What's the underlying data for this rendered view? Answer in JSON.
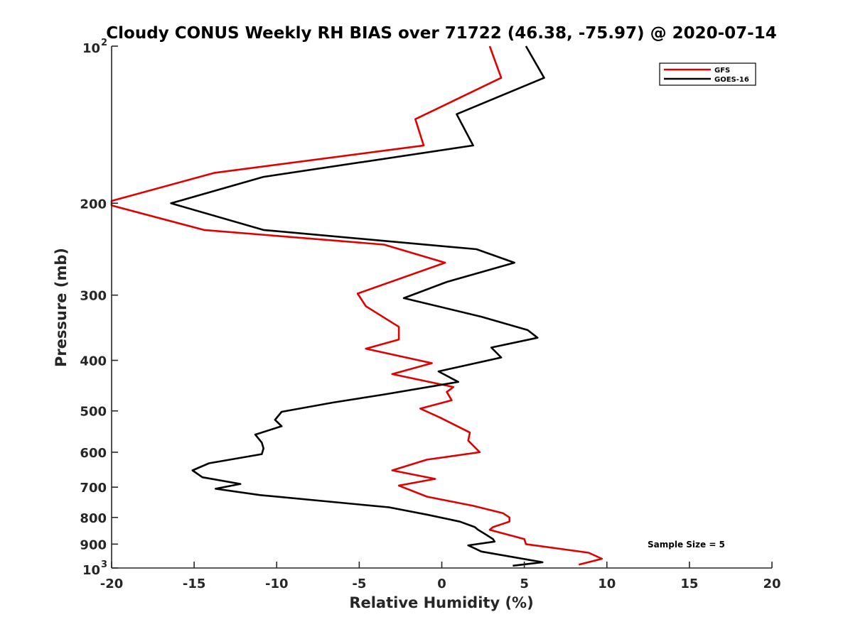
{
  "chart_data": {
    "type": "line",
    "title": "Cloudy CONUS Weekly RH BIAS over 71722 (46.38, -75.97) @ 2020-07-14",
    "xlabel": "Relative Humidity (%)",
    "ylabel": "Pressure (mb)",
    "xlim": [
      -20,
      20
    ],
    "ylim": [
      100,
      1000
    ],
    "y_scale": "log",
    "y_reversed": true,
    "x_ticks": [
      {
        "value": -20,
        "label": "-20"
      },
      {
        "value": -15,
        "label": "-15"
      },
      {
        "value": -10,
        "label": "-10"
      },
      {
        "value": -5,
        "label": "-5"
      },
      {
        "value": 0,
        "label": "0"
      },
      {
        "value": 5,
        "label": "5"
      },
      {
        "value": 10,
        "label": "10"
      },
      {
        "value": 15,
        "label": "15"
      },
      {
        "value": 20,
        "label": "20"
      }
    ],
    "y_ticks": [
      {
        "value": 100,
        "base": "10",
        "exp": "2"
      },
      {
        "value": 200,
        "label": "200"
      },
      {
        "value": 300,
        "label": "300"
      },
      {
        "value": 400,
        "label": "400"
      },
      {
        "value": 500,
        "label": "500"
      },
      {
        "value": 600,
        "label": "600"
      },
      {
        "value": 700,
        "label": "700"
      },
      {
        "value": 800,
        "label": "800"
      },
      {
        "value": 900,
        "label": "900"
      },
      {
        "value": 1000,
        "base": "10",
        "exp": "3"
      }
    ],
    "legend_position": "top-right",
    "annotation": "Sample Size = 5",
    "series": [
      {
        "name": "GFS",
        "color": "#e00000",
        "points": [
          [
            2.9,
            100
          ],
          [
            3.6,
            115
          ],
          [
            -1.6,
            138
          ],
          [
            -1.1,
            155
          ],
          [
            -13.8,
            175
          ],
          [
            -20.0,
            198
          ],
          [
            -20.0,
            202
          ],
          [
            -14.4,
            225
          ],
          [
            -3.5,
            240
          ],
          [
            0.2,
            260
          ],
          [
            -5.1,
            298
          ],
          [
            -4.6,
            315
          ],
          [
            -2.6,
            345
          ],
          [
            -2.6,
            365
          ],
          [
            -4.6,
            380
          ],
          [
            -0.6,
            405
          ],
          [
            -3.0,
            425
          ],
          [
            0.7,
            450
          ],
          [
            0.3,
            460
          ],
          [
            0.6,
            477
          ],
          [
            -1.3,
            495
          ],
          [
            -0.1,
            515
          ],
          [
            1.7,
            550
          ],
          [
            1.6,
            570
          ],
          [
            2.3,
            600
          ],
          [
            -0.9,
            620
          ],
          [
            -3.0,
            650
          ],
          [
            -0.4,
            675
          ],
          [
            -2.6,
            695
          ],
          [
            -0.9,
            730
          ],
          [
            1.9,
            760
          ],
          [
            3.7,
            785
          ],
          [
            4.1,
            800
          ],
          [
            4.1,
            815
          ],
          [
            3.1,
            835
          ],
          [
            2.9,
            845
          ],
          [
            5.0,
            880
          ],
          [
            5.1,
            900
          ],
          [
            8.9,
            935
          ],
          [
            9.7,
            960
          ],
          [
            8.3,
            985
          ]
        ]
      },
      {
        "name": "GOES-16",
        "color": "#000000",
        "points": [
          [
            5.1,
            100
          ],
          [
            6.2,
            115
          ],
          [
            0.9,
            135
          ],
          [
            1.9,
            155
          ],
          [
            -10.8,
            178
          ],
          [
            -16.4,
            200
          ],
          [
            -10.8,
            225
          ],
          [
            2.1,
            245
          ],
          [
            4.4,
            260
          ],
          [
            0.3,
            283
          ],
          [
            -2.3,
            304
          ],
          [
            2.4,
            330
          ],
          [
            5.2,
            350
          ],
          [
            5.8,
            362
          ],
          [
            3.0,
            378
          ],
          [
            3.6,
            395
          ],
          [
            -0.2,
            420
          ],
          [
            1.0,
            440
          ],
          [
            -3.5,
            465
          ],
          [
            -6.6,
            482
          ],
          [
            -9.7,
            502
          ],
          [
            -10.1,
            520
          ],
          [
            -9.7,
            535
          ],
          [
            -11.3,
            555
          ],
          [
            -10.9,
            575
          ],
          [
            -10.8,
            590
          ],
          [
            -10.9,
            605
          ],
          [
            -14.1,
            630
          ],
          [
            -15.1,
            650
          ],
          [
            -14.5,
            670
          ],
          [
            -12.2,
            690
          ],
          [
            -13.7,
            705
          ],
          [
            -11.0,
            725
          ],
          [
            -3.2,
            765
          ],
          [
            -0.9,
            790
          ],
          [
            1.1,
            815
          ],
          [
            2.0,
            835
          ],
          [
            2.2,
            845
          ],
          [
            2.6,
            860
          ],
          [
            3.1,
            880
          ],
          [
            3.2,
            890
          ],
          [
            1.6,
            905
          ],
          [
            2.4,
            930
          ],
          [
            6.1,
            975
          ],
          [
            4.3,
            990
          ]
        ]
      }
    ]
  }
}
